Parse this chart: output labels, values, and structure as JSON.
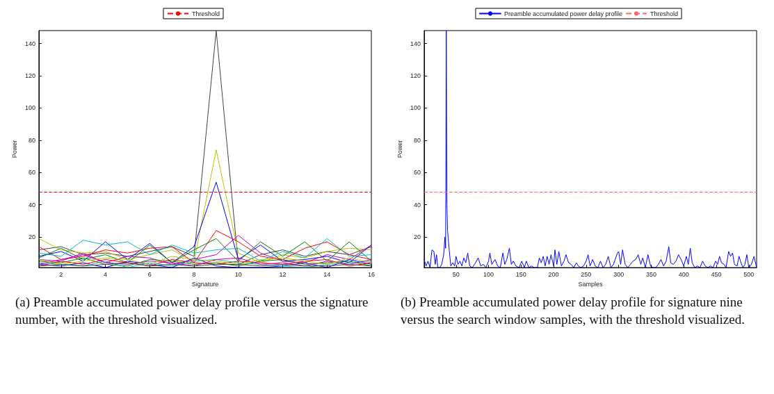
{
  "chart_data": [
    {
      "type": "line",
      "xlabel": "Signature",
      "ylabel": "Power",
      "x": [
        1,
        2,
        3,
        4,
        5,
        6,
        7,
        8,
        9,
        10,
        11,
        12,
        13,
        14,
        15,
        16
      ],
      "xlim": [
        1,
        16
      ],
      "xticks": [
        2,
        4,
        6,
        8,
        10,
        12,
        14,
        16
      ],
      "ylim": [
        1,
        148
      ],
      "yticks": [
        20,
        40,
        60,
        80,
        100,
        120,
        140
      ],
      "grid": false,
      "legend": "top",
      "marker": "none",
      "line_style": "solid",
      "series": [
        {
          "color": "#404040",
          "values": [
            12,
            14,
            9,
            10,
            8,
            11,
            14,
            8,
            148,
            3,
            9,
            12,
            8,
            11,
            9,
            14
          ]
        },
        {
          "color": "#bfbf00",
          "values": [
            19,
            12,
            10,
            11,
            6,
            9,
            12,
            5,
            74,
            10,
            4,
            9,
            7,
            11,
            13,
            12
          ]
        },
        {
          "color": "#0000ff",
          "values": [
            8,
            11,
            5,
            17,
            6,
            16,
            4,
            14,
            54,
            6,
            15,
            5,
            6,
            8,
            4,
            15
          ]
        },
        {
          "color": "#ff0000",
          "values": [
            14,
            6,
            8,
            12,
            10,
            13,
            14,
            4,
            24,
            17,
            8,
            6,
            13,
            17,
            9,
            6
          ]
        },
        {
          "color": "#008000",
          "values": [
            7,
            13,
            6,
            9,
            4,
            15,
            4,
            12,
            19,
            5,
            17,
            8,
            17,
            5,
            17,
            5
          ]
        },
        {
          "color": "#bf00bf",
          "values": [
            6,
            5,
            10,
            4,
            8,
            7,
            3,
            6,
            9,
            21,
            10,
            5,
            4,
            9,
            6,
            15
          ]
        },
        {
          "color": "#00bfbf",
          "values": [
            10,
            8,
            18,
            15,
            17,
            9,
            15,
            10,
            12,
            13,
            5,
            11,
            7,
            19,
            8,
            9
          ]
        },
        {
          "color": "#0000ff",
          "values": [
            3,
            2,
            4,
            1,
            5,
            3,
            1,
            7,
            2,
            1,
            1,
            2,
            4,
            1,
            6,
            3
          ]
        },
        {
          "color": "#008000",
          "values": [
            5,
            4,
            7,
            3,
            2,
            6,
            5,
            3,
            4,
            2,
            5,
            6,
            3,
            4,
            5,
            2
          ]
        },
        {
          "color": "#ff0000",
          "values": [
            2,
            5,
            3,
            6,
            4,
            2,
            6,
            4,
            3,
            5,
            4,
            3,
            5,
            6,
            2,
            4
          ]
        },
        {
          "color": "#00bfbf",
          "values": [
            4,
            3,
            2,
            5,
            1,
            4,
            2,
            5,
            6,
            4,
            3,
            2,
            1,
            3,
            4,
            5
          ]
        },
        {
          "color": "#bf00bf",
          "values": [
            3,
            6,
            9,
            4,
            3,
            5,
            4,
            2,
            6,
            7,
            3,
            4,
            2,
            5,
            3,
            6
          ]
        },
        {
          "color": "#bfbf00",
          "values": [
            6,
            3,
            5,
            7,
            6,
            3,
            8,
            6,
            5,
            3,
            6,
            7,
            5,
            3,
            7,
            4
          ]
        },
        {
          "color": "#404040",
          "values": [
            2,
            3,
            2,
            3,
            4,
            2,
            3,
            2,
            3,
            3,
            2,
            3,
            2,
            2,
            3,
            2
          ]
        }
      ],
      "ref_lines": [
        {
          "axis": "y",
          "value": 48,
          "label": "Threshold",
          "color": "#ff0000",
          "line_style": "dashed"
        }
      ],
      "annotations": [
        "(a) Preamble accumulated power delay profile versus the signature number, with the threshold visualized."
      ]
    },
    {
      "type": "line",
      "xlabel": "Samples",
      "ylabel": "Power",
      "xlim": [
        1,
        512
      ],
      "xticks": [
        50,
        100,
        150,
        200,
        250,
        300,
        350,
        400,
        450,
        500
      ],
      "ylim": [
        1,
        148
      ],
      "yticks": [
        20,
        40,
        60,
        80,
        100,
        120,
        140
      ],
      "grid": false,
      "legend": "top",
      "marker": "none",
      "line_style": "solid",
      "series": [
        {
          "name": "Preamble accumulated power delay profile",
          "color": "#0000ff",
          "x": [
            1,
            4,
            7,
            10,
            13,
            16,
            18,
            20,
            22,
            25,
            28,
            31,
            33,
            34,
            35,
            36,
            37,
            38,
            40,
            42,
            45,
            48,
            50,
            53,
            56,
            59,
            62,
            65,
            68,
            71,
            75,
            80,
            84,
            88,
            92,
            96,
            100,
            102,
            105,
            110,
            114,
            118,
            122,
            125,
            128,
            132,
            135,
            138,
            142,
            147,
            151,
            155,
            158,
            162,
            166,
            170,
            175,
            178,
            181,
            184,
            187,
            190,
            193,
            196,
            200,
            202,
            205,
            208,
            212,
            216,
            219,
            223,
            227,
            231,
            235,
            238,
            242,
            246,
            250,
            253,
            256,
            260,
            264,
            268,
            272,
            276,
            280,
            284,
            288,
            292,
            298,
            300,
            303,
            306,
            310,
            314,
            318,
            322,
            326,
            330,
            334,
            337,
            341,
            345,
            349,
            353,
            357,
            361,
            365,
            369,
            373,
            377,
            380,
            384,
            388,
            392,
            396,
            400,
            404,
            407,
            410,
            413,
            417,
            421,
            425,
            429,
            433,
            437,
            441,
            445,
            449,
            452,
            455,
            458,
            462,
            465,
            469,
            472,
            475,
            478,
            482,
            485,
            488,
            491,
            494,
            497,
            500,
            504,
            508,
            512
          ],
          "values": [
            6,
            2,
            5,
            1,
            12,
            11,
            3,
            9,
            1,
            1,
            3,
            9,
            20,
            13,
            148,
            40,
            24,
            19,
            10,
            2,
            4,
            2,
            8,
            3,
            5,
            2,
            7,
            4,
            10,
            2,
            1,
            4,
            7,
            2,
            3,
            1,
            5,
            10,
            3,
            6,
            2,
            1,
            10,
            3,
            6,
            13,
            3,
            5,
            2,
            1,
            5,
            1,
            5,
            1,
            2,
            1,
            1,
            7,
            4,
            8,
            2,
            8,
            3,
            9,
            2,
            12,
            3,
            11,
            2,
            5,
            9,
            4,
            3,
            1,
            4,
            2,
            1,
            2,
            5,
            9,
            2,
            6,
            2,
            1,
            5,
            1,
            3,
            8,
            1,
            3,
            10,
            11,
            3,
            12,
            3,
            1,
            3,
            5,
            6,
            9,
            3,
            7,
            1,
            9,
            2,
            1,
            1,
            3,
            6,
            2,
            5,
            14,
            4,
            3,
            5,
            9,
            6,
            2,
            8,
            3,
            13,
            4,
            1,
            2,
            1,
            5,
            2,
            1,
            2,
            1,
            5,
            3,
            8,
            4,
            3,
            1,
            11,
            8,
            10,
            3,
            2,
            8,
            4,
            1,
            3,
            9,
            1,
            3,
            8,
            1
          ]
        }
      ],
      "ref_lines": [
        {
          "axis": "y",
          "value": 48,
          "label": "Threshold",
          "color": "#ff6666",
          "line_style": "dashed"
        }
      ],
      "annotations": [
        "(b) Preamble accumulated power delay profile for signature nine versus the search window samples, with the threshold visualized."
      ]
    }
  ]
}
